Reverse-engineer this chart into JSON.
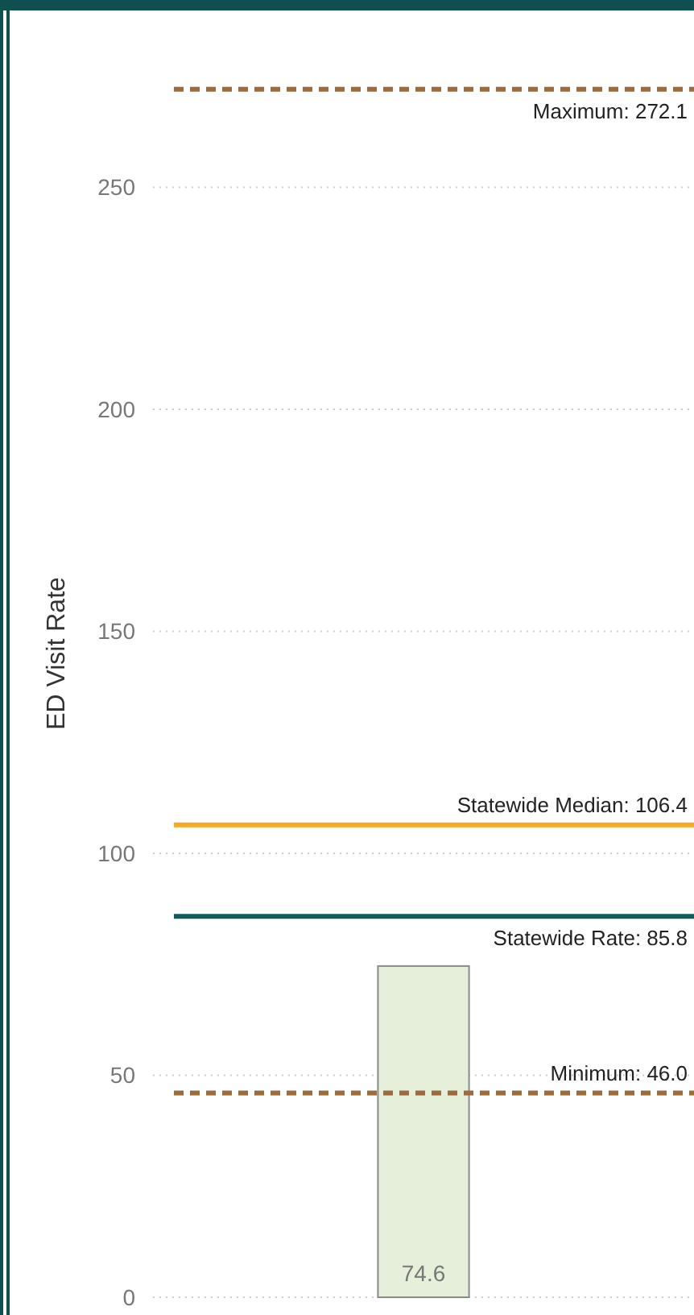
{
  "chart_data": {
    "type": "bar",
    "ylabel": "ED Visit Rate",
    "categories": [
      null
    ],
    "values": [
      74.6
    ],
    "color": "#e6efd9",
    "data_labels": true,
    "ylim": [
      0,
      290
    ],
    "yticks": [
      0,
      50,
      100,
      150,
      200,
      250
    ],
    "grid": "y",
    "ref_lines": [
      {
        "axis": "y",
        "value": 272.1,
        "label": "Maximum: 272.1",
        "color": "#9c6a3c",
        "line_style": "dashed"
      },
      {
        "axis": "y",
        "value": 106.4,
        "label": "Statewide Median: 106.4",
        "color": "#f7a823",
        "line_style": "solid"
      },
      {
        "axis": "y",
        "value": 85.8,
        "label": "Statewide Rate: 85.8",
        "color": "#0f5c5c",
        "line_style": "solid"
      },
      {
        "axis": "y",
        "value": 46.0,
        "label": "Minimum: 46.0",
        "color": "#9c6a3c",
        "line_style": "dashed"
      }
    ]
  }
}
